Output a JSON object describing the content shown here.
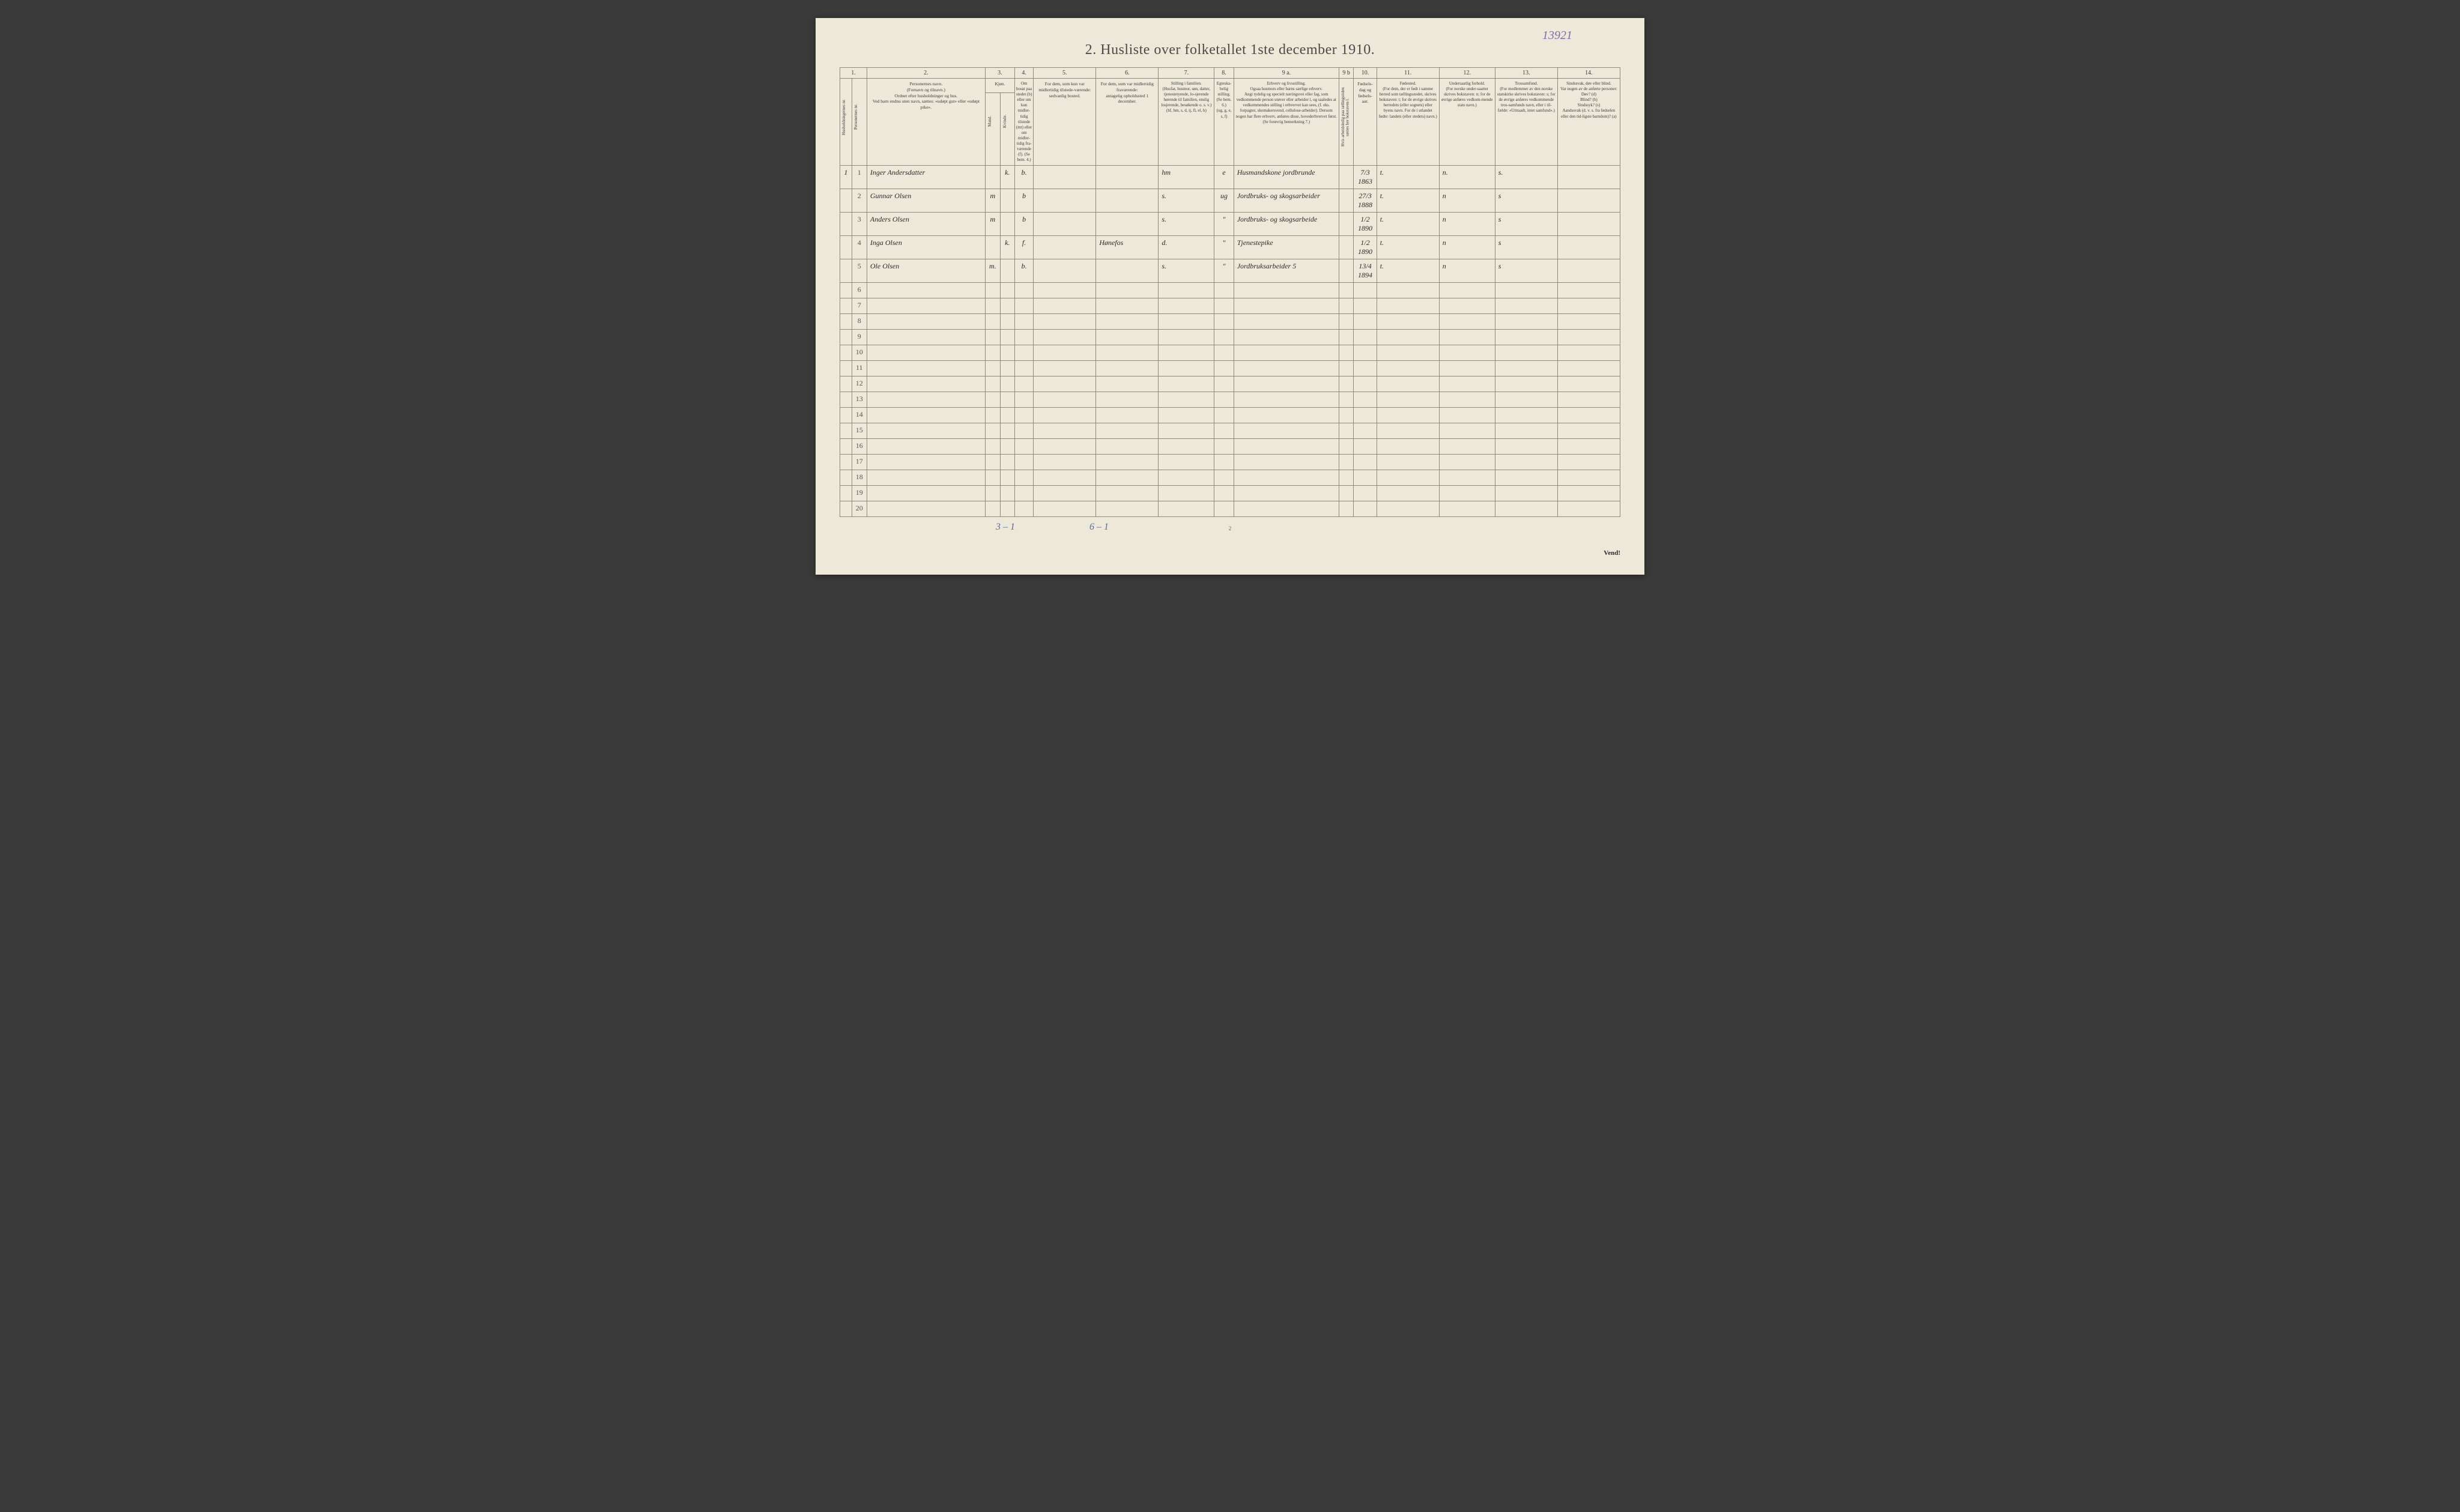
{
  "handwritten_top_right": "13921",
  "title": "2.  Husliste over folketallet 1ste december 1910.",
  "column_numbers": [
    "1.",
    "2.",
    "3.",
    "4.",
    "5.",
    "6.",
    "7.",
    "8.",
    "9 a.",
    "9 b",
    "10.",
    "11.",
    "12.",
    "13.",
    "14."
  ],
  "headers": {
    "col1a": "Husholdningernes nr.",
    "col1b": "Personernes nr.",
    "col2": "Personernes navn.\n(Fornavn og tilnavn.)\nOrdnet efter husholdninger og hus.\nVed barn endnu uten navn, sættes:  «udøpt gut»  eller «udøpt pike».",
    "col3": "Kjøn.",
    "col3a": "Mand.",
    "col3b": "Kvinde.",
    "col3_sub": "m.  k.",
    "col4": "Om bosat paa stedet (b) eller om kun midler-tidig tilstede (mt) eller om midler-tidig fra-værende (f). (Se bem. 4.)",
    "col5": "For dem, som kun var midlertidig tilstede-værende:\nsedvanlig bosted.",
    "col6": "For dem, som var midlertidig fraværende:\nantagelig opholdssted 1 december.",
    "col7": "Stilling i familien.\n(Husfar, husmor, søn, datter, tjenestetyende, lo-sjerende hørende til familien, enslig losjerende, besøkende o. s. v.)\n(hf, hm, s, d, tj, fl, el, b)",
    "col8": "Egteska-belig stilling.\n(Se bem. 6.)\n(ug, g, e, s, f)",
    "col9a": "Erhverv og livsstilling.\nOgsaa husmors eller barns særlige erhverv.\nAngi tydelig og specielt næringsvei eller fag, som vedkommende person utøver eller arbeider i, og saaledes at vedkommendes stilling i erhvervet kan sees, (f. eks. forpagter, skomakersvend, cellulose-arbeider).  Dersom nogen har flere erhverv, anføres disse, hovederhvervet først.\n(Se forøvrig bemerkning 7.)",
    "col9b": "Hvis arbeidsledig paa tællingstiden sættes her bokstaven  l.",
    "col10": "Fødsels-dag og fødsels-aar.",
    "col11": "Fødested.\n(For dem, der er født i samme herred som tællingsstedet, skrives bokstaven: t; for de øvrige skrives herredets  (eller sognets) eller byens navn. For de i utlandet fødte: landets (eller stedets) navn.)",
    "col12": "Undersaatlig forhold.\n(For norske under-saatter skrives bokstaven: n; for de øvrige anføres vedkom-mende stats navn.)",
    "col13": "Trossamfund.\n(For medlemmer av den norske statskirke skrives bokstaven: s; for de øvrige anføres vedkommende tros-samfunds navn, eller i til-fælde:  «Uttraadt, intet samfund».)",
    "col14": "Sindssvak, døv eller blind.\nVar nogen av de anførte personer:\nDøv?           (d)\nBlind?          (b)\nSindssyk?    (s)\nAandssvak (d. v. s. fra fødselen eller den tid-ligste barndom)?  (a)"
  },
  "rows": [
    {
      "hh": "1",
      "pn": "1",
      "name": "Inger Andersdatter",
      "sex_m": "",
      "sex_k": "k.",
      "res": "b.",
      "temp_present": "",
      "temp_absent": "",
      "family": "hm",
      "marital": "e",
      "occupation": "Husmandskone jordbrunde",
      "unemp": "",
      "birth": "7/3 1863",
      "birthplace": "t.",
      "nationality": "n.",
      "religion": "s.",
      "disability": ""
    },
    {
      "hh": "",
      "pn": "2",
      "name": "Gunnar Olsen",
      "sex_m": "m",
      "sex_k": "",
      "res": "b",
      "temp_present": "",
      "temp_absent": "",
      "family": "s.",
      "marital": "ug",
      "occupation": "Jordbruks- og skogsarbeider",
      "unemp": "",
      "birth": "27/3 1888",
      "birthplace": "t.",
      "nationality": "n",
      "religion": "s",
      "disability": ""
    },
    {
      "hh": "",
      "pn": "3",
      "name": "Anders Olsen",
      "sex_m": "m",
      "sex_k": "",
      "res": "b",
      "temp_present": "",
      "temp_absent": "",
      "family": "s.",
      "marital": "\"",
      "occupation": "Jordbruks- og skogsarbeide",
      "unemp": "",
      "birth": "1/2 1890",
      "birthplace": "t.",
      "nationality": "n",
      "religion": "s",
      "disability": ""
    },
    {
      "hh": "",
      "pn": "4",
      "name": "Inga Olsen",
      "sex_m": "",
      "sex_k": "k.",
      "res": "f.",
      "temp_present": "",
      "temp_absent": "Hønefos",
      "family": "d.",
      "marital": "\"",
      "occupation": "Tjenestepike",
      "unemp": "",
      "birth": "1/2 1890",
      "birthplace": "t.",
      "nationality": "n",
      "religion": "s",
      "disability": ""
    },
    {
      "hh": "",
      "pn": "5",
      "name": "Ole Olsen",
      "sex_m": "m.",
      "sex_k": "",
      "res": "b.",
      "temp_present": "",
      "temp_absent": "",
      "family": "s.",
      "marital": "\"",
      "occupation": "Jordbruksarbeider 5",
      "unemp": "",
      "birth": "13/4 1894",
      "birthplace": "t.",
      "nationality": "n",
      "religion": "s",
      "disability": ""
    }
  ],
  "empty_rows": [
    6,
    7,
    8,
    9,
    10,
    11,
    12,
    13,
    14,
    15,
    16,
    17,
    18,
    19,
    20
  ],
  "footer_left": "3 – 1",
  "footer_mid": "6 – 1",
  "page_number": "2",
  "vend": "Vend!"
}
